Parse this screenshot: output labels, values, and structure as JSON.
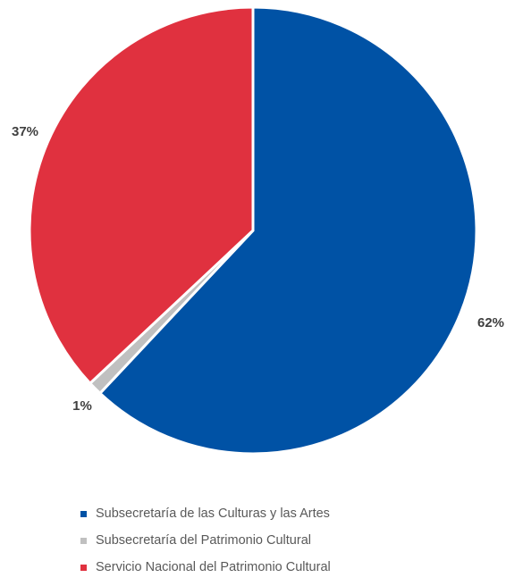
{
  "chart_data": {
    "type": "pie",
    "title": "",
    "slices": [
      {
        "name": "Subsecretaría de las Culturas y las Artes",
        "value": 62,
        "label": "62%",
        "color": "#0052A5"
      },
      {
        "name": "Subsecretaría del Patrimonio Cultural",
        "value": 1,
        "label": "1%",
        "color": "#C0C0C0"
      },
      {
        "name": "Servicio Nacional del Patrimonio Cultural",
        "value": 37,
        "label": "37%",
        "color": "#E0313F"
      }
    ],
    "start_angle_deg": 0,
    "direction": "clockwise",
    "legend_position": "bottom"
  }
}
